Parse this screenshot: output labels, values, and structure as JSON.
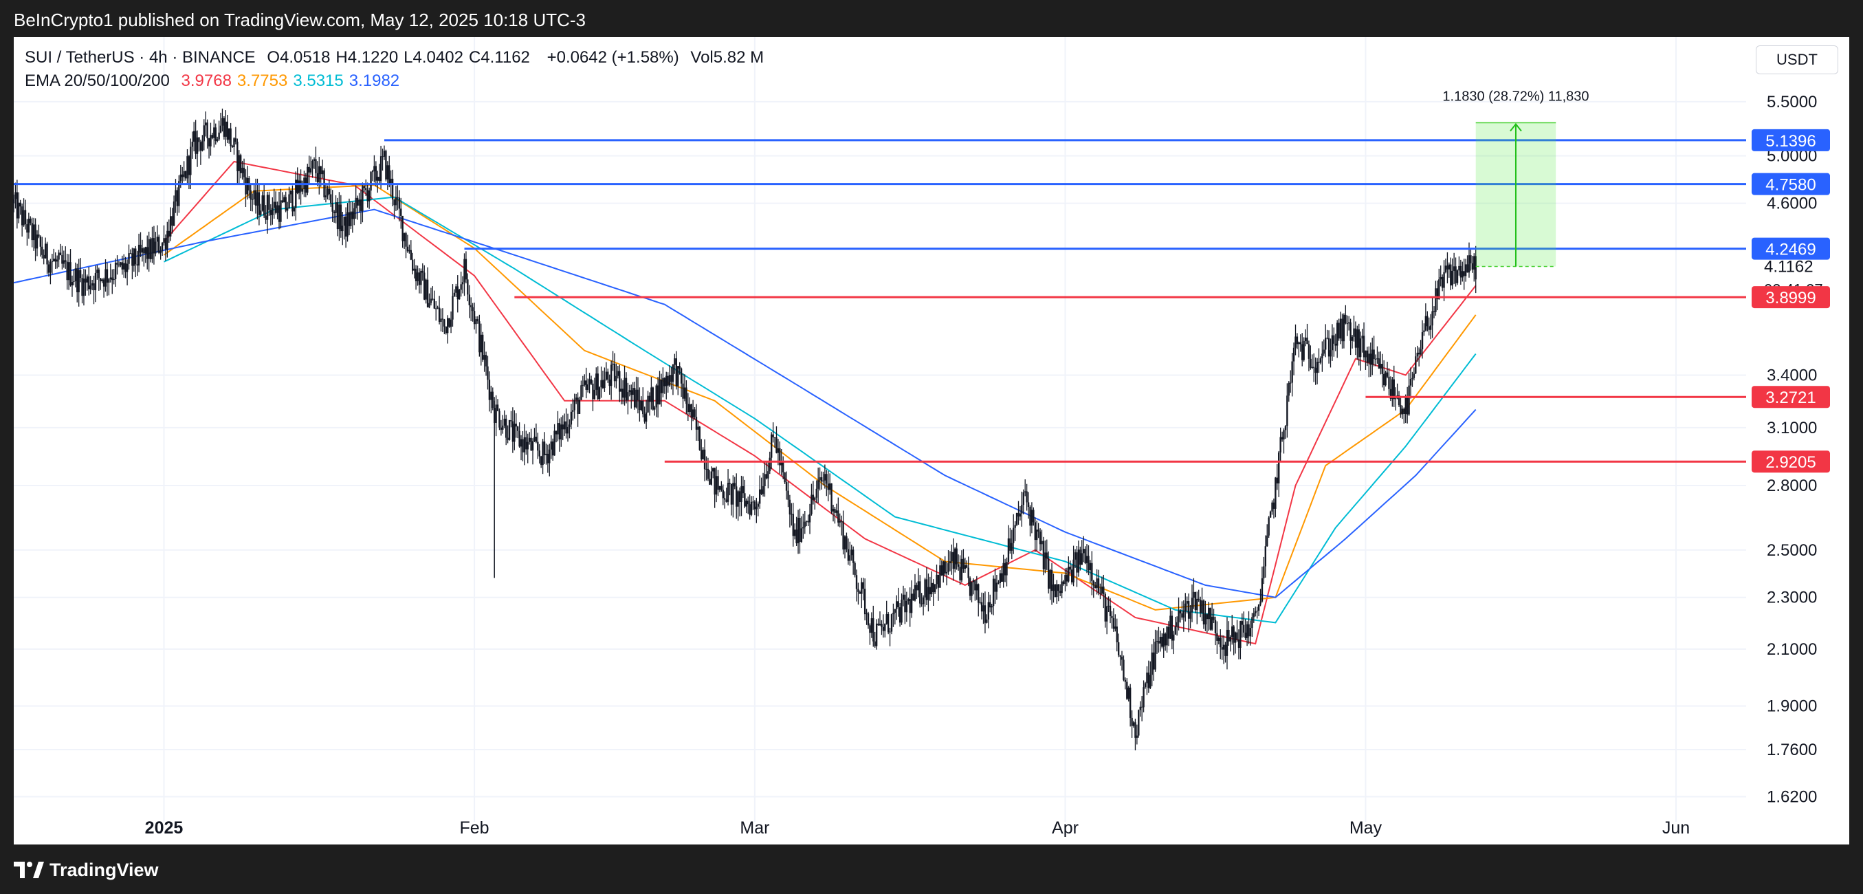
{
  "header": {
    "published": "BeInCrypto1 published on TradingView.com, May 12, 2025 10:18 UTC-3"
  },
  "legend": {
    "symbol": "SUI / TetherUS · 4h · BINANCE",
    "ohlc": [
      {
        "label": "O",
        "value": "4.0518"
      },
      {
        "label": "H",
        "value": "4.1220"
      },
      {
        "label": "L",
        "value": "4.0402"
      },
      {
        "label": "C",
        "value": "4.1162"
      }
    ],
    "change": "+0.0642 (+1.58%)",
    "volume_label": "Vol",
    "volume": "5.82 M",
    "ema_label": "EMA 20/50/100/200",
    "ema_values": [
      {
        "value": "3.9768",
        "color": "#f23645"
      },
      {
        "value": "3.7753",
        "color": "#ff9800"
      },
      {
        "value": "3.5315",
        "color": "#00bcd4"
      },
      {
        "value": "3.1982",
        "color": "#2962ff"
      }
    ]
  },
  "currency": "USDT",
  "footer": {
    "brand": "TradingView"
  },
  "chart_data": {
    "type": "candlestick",
    "symbol": "SUI/USDT",
    "timeframe": "4h",
    "y_scale": "log",
    "y_ticks": [
      "5.5000",
      "5.0000",
      "4.6000",
      "3.4000",
      "3.1000",
      "2.8000",
      "2.5000",
      "2.3000",
      "2.1000",
      "1.9000",
      "1.7600",
      "1.6200"
    ],
    "x_ticks": [
      {
        "label": "2025",
        "date": "2025-01-01"
      },
      {
        "label": "Feb",
        "date": "2025-02-01"
      },
      {
        "label": "Mar",
        "date": "2025-03-01"
      },
      {
        "label": "Apr",
        "date": "2025-04-01"
      },
      {
        "label": "May",
        "date": "2025-05-01"
      },
      {
        "label": "Jun",
        "date": "2025-06-01"
      }
    ],
    "x_range": [
      "2024-12-17",
      "2025-06-08"
    ],
    "price_path": [
      [
        "2024-12-17",
        4.6
      ],
      [
        "2024-12-20",
        4.2
      ],
      [
        "2024-12-24",
        4.0
      ],
      [
        "2024-12-28",
        4.1
      ],
      [
        "2025-01-01",
        4.3
      ],
      [
        "2025-01-04",
        5.1
      ],
      [
        "2025-01-07",
        5.3
      ],
      [
        "2025-01-10",
        4.6
      ],
      [
        "2025-01-13",
        4.55
      ],
      [
        "2025-01-16",
        4.9
      ],
      [
        "2025-01-19",
        4.4
      ],
      [
        "2025-01-23",
        4.95
      ],
      [
        "2025-01-26",
        4.1
      ],
      [
        "2025-01-29",
        3.7
      ],
      [
        "2025-01-31",
        4.1
      ],
      [
        "2025-02-03",
        3.2
      ],
      [
        "2025-02-05",
        3.05
      ],
      [
        "2025-02-08",
        2.95
      ],
      [
        "2025-02-12",
        3.3
      ],
      [
        "2025-02-15",
        3.4
      ],
      [
        "2025-02-18",
        3.2
      ],
      [
        "2025-02-21",
        3.45
      ],
      [
        "2025-02-25",
        2.8
      ],
      [
        "2025-03-01",
        2.7
      ],
      [
        "2025-03-03",
        3.05
      ],
      [
        "2025-03-05",
        2.55
      ],
      [
        "2025-03-08",
        2.85
      ],
      [
        "2025-03-11",
        2.4
      ],
      [
        "2025-03-13",
        2.15
      ],
      [
        "2025-03-17",
        2.3
      ],
      [
        "2025-03-21",
        2.45
      ],
      [
        "2025-03-24",
        2.25
      ],
      [
        "2025-03-26",
        2.45
      ],
      [
        "2025-03-28",
        2.75
      ],
      [
        "2025-03-31",
        2.3
      ],
      [
        "2025-04-03",
        2.5
      ],
      [
        "2025-04-06",
        2.15
      ],
      [
        "2025-04-08",
        1.82
      ],
      [
        "2025-04-10",
        2.1
      ],
      [
        "2025-04-14",
        2.3
      ],
      [
        "2025-04-17",
        2.12
      ],
      [
        "2025-04-20",
        2.2
      ],
      [
        "2025-04-22",
        2.8
      ],
      [
        "2025-04-24",
        3.6
      ],
      [
        "2025-04-26",
        3.5
      ],
      [
        "2025-04-29",
        3.7
      ],
      [
        "2025-05-02",
        3.45
      ],
      [
        "2025-05-05",
        3.2
      ],
      [
        "2025-05-07",
        3.7
      ],
      [
        "2025-05-09",
        4.05
      ],
      [
        "2025-05-12",
        4.12
      ]
    ],
    "ema": [
      {
        "name": "EMA 20",
        "color": "#f23645",
        "last": 3.9768,
        "path": [
          [
            "2025-01-01",
            4.3
          ],
          [
            "2025-01-08",
            4.95
          ],
          [
            "2025-01-20",
            4.75
          ],
          [
            "2025-02-01",
            4.05
          ],
          [
            "2025-02-10",
            3.25
          ],
          [
            "2025-02-20",
            3.25
          ],
          [
            "2025-03-01",
            2.95
          ],
          [
            "2025-03-12",
            2.55
          ],
          [
            "2025-03-22",
            2.35
          ],
          [
            "2025-03-29",
            2.5
          ],
          [
            "2025-04-08",
            2.22
          ],
          [
            "2025-04-20",
            2.12
          ],
          [
            "2025-04-24",
            2.8
          ],
          [
            "2025-04-30",
            3.5
          ],
          [
            "2025-05-05",
            3.4
          ],
          [
            "2025-05-12",
            3.98
          ]
        ]
      },
      {
        "name": "EMA 50",
        "color": "#ff9800",
        "last": 3.7753,
        "path": [
          [
            "2025-01-01",
            4.2
          ],
          [
            "2025-01-10",
            4.7
          ],
          [
            "2025-01-22",
            4.75
          ],
          [
            "2025-02-01",
            4.25
          ],
          [
            "2025-02-12",
            3.55
          ],
          [
            "2025-02-25",
            3.25
          ],
          [
            "2025-03-08",
            2.8
          ],
          [
            "2025-03-20",
            2.45
          ],
          [
            "2025-04-01",
            2.4
          ],
          [
            "2025-04-10",
            2.25
          ],
          [
            "2025-04-22",
            2.3
          ],
          [
            "2025-04-27",
            2.9
          ],
          [
            "2025-05-05",
            3.2
          ],
          [
            "2025-05-12",
            3.78
          ]
        ]
      },
      {
        "name": "EMA 100",
        "color": "#00bcd4",
        "last": 3.5315,
        "path": [
          [
            "2025-01-01",
            4.15
          ],
          [
            "2025-01-12",
            4.55
          ],
          [
            "2025-01-24",
            4.65
          ],
          [
            "2025-02-05",
            4.1
          ],
          [
            "2025-02-18",
            3.55
          ],
          [
            "2025-03-01",
            3.15
          ],
          [
            "2025-03-15",
            2.65
          ],
          [
            "2025-04-01",
            2.45
          ],
          [
            "2025-04-12",
            2.25
          ],
          [
            "2025-04-22",
            2.2
          ],
          [
            "2025-04-28",
            2.6
          ],
          [
            "2025-05-05",
            3.0
          ],
          [
            "2025-05-12",
            3.53
          ]
        ]
      },
      {
        "name": "EMA 200",
        "color": "#2962ff",
        "last": 3.1982,
        "path": [
          [
            "2024-12-17",
            4.0
          ],
          [
            "2025-01-05",
            4.3
          ],
          [
            "2025-01-22",
            4.55
          ],
          [
            "2025-02-05",
            4.2
          ],
          [
            "2025-02-20",
            3.85
          ],
          [
            "2025-03-05",
            3.35
          ],
          [
            "2025-03-20",
            2.85
          ],
          [
            "2025-04-01",
            2.58
          ],
          [
            "2025-04-15",
            2.35
          ],
          [
            "2025-04-22",
            2.3
          ],
          [
            "2025-04-29",
            2.55
          ],
          [
            "2025-05-06",
            2.85
          ],
          [
            "2025-05-12",
            3.2
          ]
        ]
      }
    ],
    "levels": [
      {
        "value": 5.1396,
        "label": "5.1396",
        "color": "#2962ff",
        "from": "2025-01-23"
      },
      {
        "value": 4.758,
        "label": "4.7580",
        "color": "#2962ff",
        "from": "2024-12-17"
      },
      {
        "value": 4.2469,
        "label": "4.2469",
        "color": "#2962ff",
        "from": "2025-01-31"
      },
      {
        "value": 3.8999,
        "label": "3.8999",
        "color": "#f23645",
        "from": "2025-02-05"
      },
      {
        "value": 3.2721,
        "label": "3.2721",
        "color": "#f23645",
        "from": "2025-05-01"
      },
      {
        "value": 2.9205,
        "label": "2.9205",
        "color": "#f23645",
        "from": "2025-02-20"
      }
    ],
    "current_price": {
      "value": 4.1162,
      "label": "4.1162",
      "countdown": "02:41:27"
    },
    "measure": {
      "from_date": "2025-05-12",
      "to_date": "2025-05-20",
      "low": 4.1162,
      "high": 5.3,
      "label": "1.1830 (28.72%) 11,830"
    }
  }
}
